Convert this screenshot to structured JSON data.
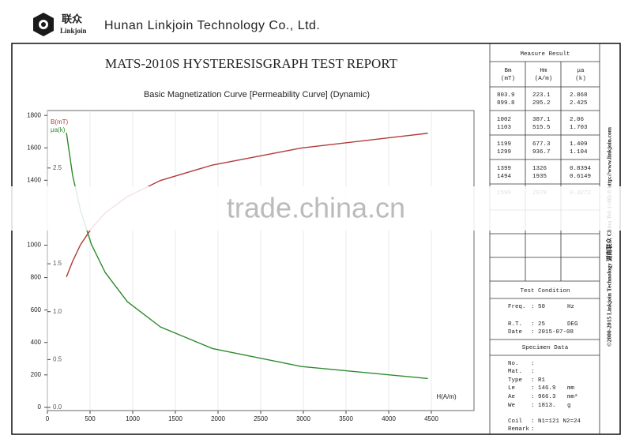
{
  "header": {
    "logo_cn": "联众",
    "logo_en": "Linkjoin",
    "company": "Hunan Linkjoin Technology Co., Ltd."
  },
  "report_title": "MATS-2010S HYSTERESISGRAPH TEST REPORT",
  "chart_data": {
    "type": "line",
    "title": "Basic Magnetization Curve [Permeability Curve] (Dynamic)",
    "x_label": "H(A/m)",
    "x": [
      223.1,
      295.2,
      387.1,
      515.5,
      677.3,
      936.7,
      1326,
      1935,
      2978,
      4460
    ],
    "series": [
      {
        "name": "B(mT)",
        "color": "#b23a3a",
        "values": [
          803.9,
          899.8,
          1002,
          1103,
          1199,
          1299,
          1399,
          1494,
          1599,
          1690
        ]
      },
      {
        "name": "μa(k)",
        "color": "#2e8b2e",
        "axis": "y2",
        "values": [
          2.868,
          2.425,
          2.06,
          1.703,
          1.409,
          1.104,
          0.8394,
          0.6149,
          0.4272,
          0.3016
        ]
      }
    ],
    "xlim": [
      0,
      5000
    ],
    "xticks": [
      0,
      500,
      1000,
      1500,
      2000,
      2500,
      3000,
      3500,
      4000,
      4500
    ],
    "ylim": [
      -20,
      1830
    ],
    "yticks": [
      0,
      200,
      400,
      600,
      800,
      1000,
      1400,
      1600,
      1800
    ],
    "y2lim": [
      -0.033,
      3.1
    ],
    "y2ticks": [
      {
        "value": 0,
        "label": "0.0"
      },
      0.5,
      {
        "value": 1,
        "label": "1.0"
      },
      1.5,
      2.5
    ],
    "grid": true
  },
  "measure": {
    "title": "Measure Result",
    "columns": [
      {
        "name": "Bm",
        "unit": "(mT)"
      },
      {
        "name": "Hm",
        "unit": "(A/m)"
      },
      {
        "name": "μa",
        "unit": "(k)"
      }
    ],
    "rows": [
      [
        "803.9",
        "223.1",
        "2.868"
      ],
      [
        "899.8",
        "295.2",
        "2.425"
      ],
      [
        "1002",
        "387.1",
        "2.06"
      ],
      [
        "1103",
        "515.5",
        "1.703"
      ],
      [
        "1199",
        "677.3",
        "1.409"
      ],
      [
        "1299",
        "936.7",
        "1.104"
      ],
      [
        "1399",
        "1326",
        "0.8394"
      ],
      [
        "1494",
        "1935",
        "0.6149"
      ],
      [
        "1599",
        "2978",
        "0.4272"
      ]
    ]
  },
  "test_condition": {
    "title": "Test Condition",
    "items": [
      [
        "Freq.",
        ":",
        "50",
        "Hz"
      ],
      [
        "R.T.",
        ":",
        "25",
        "DEG"
      ],
      [
        "Date",
        ":",
        "2015-07-08",
        ""
      ]
    ]
  },
  "specimen": {
    "title": "Specimen Data",
    "items": [
      [
        "No.",
        ":",
        "",
        ""
      ],
      [
        "Mat.",
        ":",
        "",
        ""
      ],
      [
        "Type",
        ":",
        "R1",
        ""
      ],
      [
        "Le",
        ":",
        "146.9",
        "mm"
      ],
      [
        "Ae",
        ":",
        "966.3",
        "mm²"
      ],
      [
        "We",
        ":",
        "1813.",
        "g"
      ],
      [
        "Coil",
        ":",
        "N1=121 N2=24",
        ""
      ],
      [
        "Remark",
        ":",
        "",
        ""
      ]
    ]
  },
  "side_text": "©2000-2015 Linkjoin Technology 湖南联众 China Tel: (+86)-8 http://www.linkjoin.com",
  "watermark": "trade.china.cn"
}
